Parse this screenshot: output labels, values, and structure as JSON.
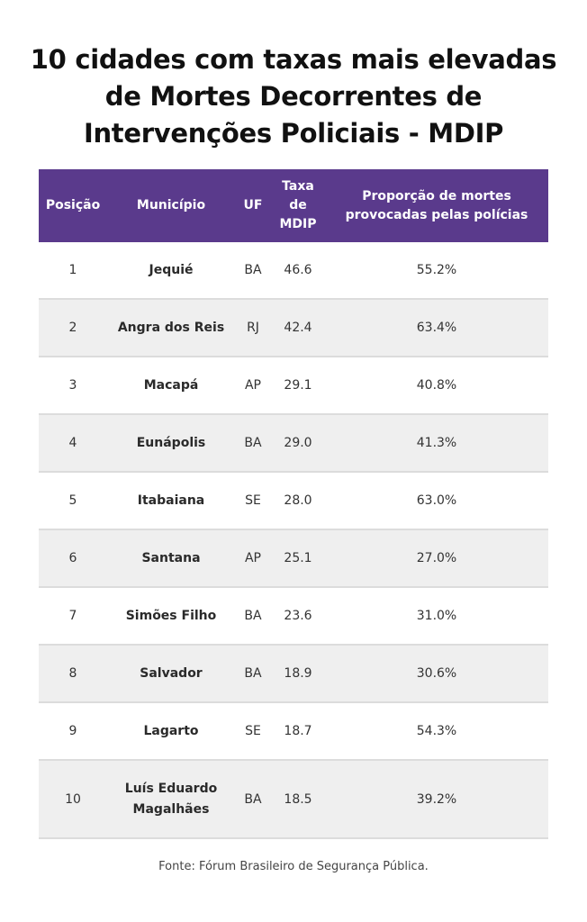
{
  "title_lines": [
    "10 cidades com taxas mais elevadas",
    "de Mortes Decorrentes de",
    "Intervenções Policiais - MDIP"
  ],
  "headers": {
    "posicao": "Posição",
    "municipio": "Município",
    "uf": "UF",
    "taxa": [
      "Taxa de",
      "MDIP"
    ],
    "proporcao": [
      "Proporção de mortes",
      "provocadas pelas polícias"
    ]
  },
  "chart_data": {
    "type": "table",
    "columns": [
      "Posição",
      "Município",
      "UF",
      "Taxa de MDIP",
      "Proporção de mortes provocadas pelas polícias"
    ],
    "rows": [
      {
        "posicao": "1",
        "municipio": [
          "Jequié"
        ],
        "uf": "BA",
        "taxa": "46.6",
        "proporcao": "55.2%"
      },
      {
        "posicao": "2",
        "municipio": [
          "Angra dos Reis"
        ],
        "uf": "RJ",
        "taxa": "42.4",
        "proporcao": "63.4%"
      },
      {
        "posicao": "3",
        "municipio": [
          "Macapá"
        ],
        "uf": "AP",
        "taxa": "29.1",
        "proporcao": "40.8%"
      },
      {
        "posicao": "4",
        "municipio": [
          "Eunápolis"
        ],
        "uf": "BA",
        "taxa": "29.0",
        "proporcao": "41.3%"
      },
      {
        "posicao": "5",
        "municipio": [
          "Itabaiana"
        ],
        "uf": "SE",
        "taxa": "28.0",
        "proporcao": "63.0%"
      },
      {
        "posicao": "6",
        "municipio": [
          "Santana"
        ],
        "uf": "AP",
        "taxa": "25.1",
        "proporcao": "27.0%"
      },
      {
        "posicao": "7",
        "municipio": [
          "Simões Filho"
        ],
        "uf": "BA",
        "taxa": "23.6",
        "proporcao": "31.0%"
      },
      {
        "posicao": "8",
        "municipio": [
          "Salvador"
        ],
        "uf": "BA",
        "taxa": "18.9",
        "proporcao": "30.6%"
      },
      {
        "posicao": "9",
        "municipio": [
          "Lagarto"
        ],
        "uf": "SE",
        "taxa": "18.7",
        "proporcao": "54.3%"
      },
      {
        "posicao": "10",
        "municipio": [
          "Luís Eduardo",
          "Magalhães"
        ],
        "uf": "BA",
        "taxa": "18.5",
        "proporcao": "39.2%"
      }
    ]
  },
  "source": "Fonte: Fórum Brasileiro de Segurança Pública.",
  "colors": {
    "header_bg": "#5a3a8c",
    "alt_row_bg": "#efefef"
  }
}
